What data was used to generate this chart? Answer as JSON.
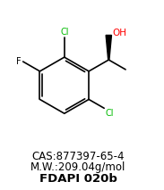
{
  "cas": "CAS:877397-65-4",
  "mw": "M.W.:209.04g/mol",
  "fdapi": "FDAPI 020b",
  "bg_color": "#ffffff",
  "bond_color": "#000000",
  "cl_color": "#00bb00",
  "f_color": "#000000",
  "oh_color": "#ff0000",
  "text_color": "#000000",
  "cas_fontsize": 8.5,
  "mw_fontsize": 8.5,
  "fdapi_fontsize": 9.5,
  "fig_width": 1.83,
  "fig_height": 2.13,
  "dpi": 100
}
